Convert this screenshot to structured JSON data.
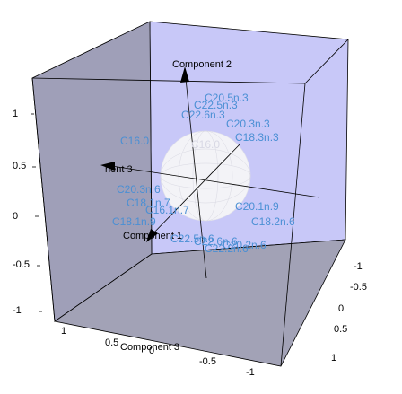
{
  "chart_data": {
    "type": "scatter",
    "title": "",
    "axes": {
      "x_label": "Component  1",
      "y_label": "Component  2",
      "z_label": "Component  3",
      "axis_label_back": "nent  3",
      "x_ticks": [
        "-1",
        "-0.5",
        "0",
        "0.5",
        "1"
      ],
      "y_ticks": [
        "-1",
        "-0.5",
        "0",
        "0.5",
        "1"
      ],
      "z_ticks": [
        "1",
        "0.5",
        "0",
        "-0.5",
        "-1"
      ]
    },
    "center_label": "C16.0",
    "unit_sphere": true,
    "points": [
      {
        "label": "C20.5n.3"
      },
      {
        "label": "C22.5n.3"
      },
      {
        "label": "C22.6n.3"
      },
      {
        "label": "C20.3n.3"
      },
      {
        "label": "C18.3n.3"
      },
      {
        "label": "C16.0"
      },
      {
        "label": "C20.3n.6"
      },
      {
        "label": "C18.1n.7"
      },
      {
        "label": "C16.1n.7"
      },
      {
        "label": "C20.1n.9"
      },
      {
        "label": "C18.1n.9"
      },
      {
        "label": "C18.2n.6"
      },
      {
        "label": "C22.5n.6"
      },
      {
        "label": "C22.6n.6"
      },
      {
        "label": "C22.2n.6"
      },
      {
        "label": "C20.2n.6"
      }
    ],
    "colors": {
      "point_labels": "#4a8fd4",
      "back_wall": "#c8c8f8",
      "left_wall": "#9a9ab4",
      "floor": "#a2a2b6",
      "sphere": "#f6f6f6"
    }
  }
}
